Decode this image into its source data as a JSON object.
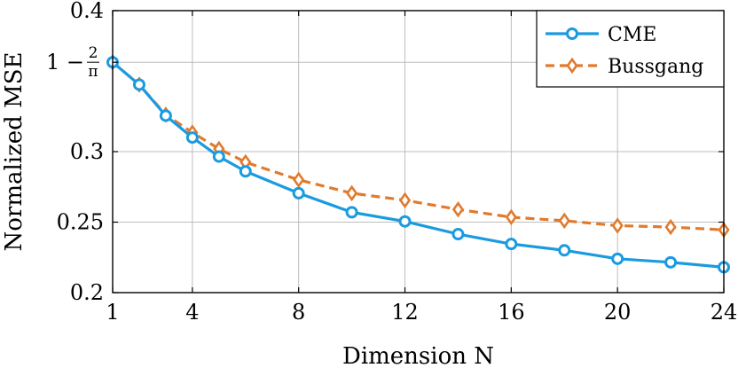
{
  "chart_data": {
    "type": "line",
    "xlabel": "Dimension N",
    "ylabel": "Normalized MSE",
    "xlim": [
      1,
      24
    ],
    "ylim": [
      0.2,
      0.4
    ],
    "x_ticks": [
      1,
      4,
      8,
      12,
      16,
      20,
      24
    ],
    "x_tick_labels": [
      "1",
      "4",
      "8",
      "12",
      "16",
      "20",
      "24"
    ],
    "y_ticks": [
      0.2,
      0.25,
      0.3,
      0.3634,
      0.4
    ],
    "y_tick_labels": [
      "0.2",
      "0.25",
      "0.3",
      "1 − 2/π",
      "0.4"
    ],
    "grid": true,
    "legend_position": "top-right",
    "series": [
      {
        "name": "CME",
        "color": "#1a9be0",
        "marker": "circle",
        "line_style": "solid",
        "x": [
          1,
          2,
          3,
          4,
          5,
          6,
          8,
          10,
          12,
          14,
          16,
          18,
          20,
          22,
          24
        ],
        "y": [
          0.3634,
          0.3475,
          0.3255,
          0.31,
          0.2965,
          0.286,
          0.2705,
          0.257,
          0.2505,
          0.2415,
          0.2345,
          0.23,
          0.224,
          0.2215,
          0.218
        ]
      },
      {
        "name": "Bussgang",
        "color": "#e07b2e",
        "marker": "diamond",
        "line_style": "dashed",
        "x": [
          1,
          2,
          3,
          4,
          5,
          6,
          8,
          10,
          12,
          14,
          16,
          18,
          20,
          22,
          24
        ],
        "y": [
          0.3634,
          0.3475,
          0.3262,
          0.3135,
          0.302,
          0.2925,
          0.28,
          0.2705,
          0.2655,
          0.259,
          0.2535,
          0.251,
          0.2475,
          0.2465,
          0.2445
        ]
      }
    ]
  }
}
